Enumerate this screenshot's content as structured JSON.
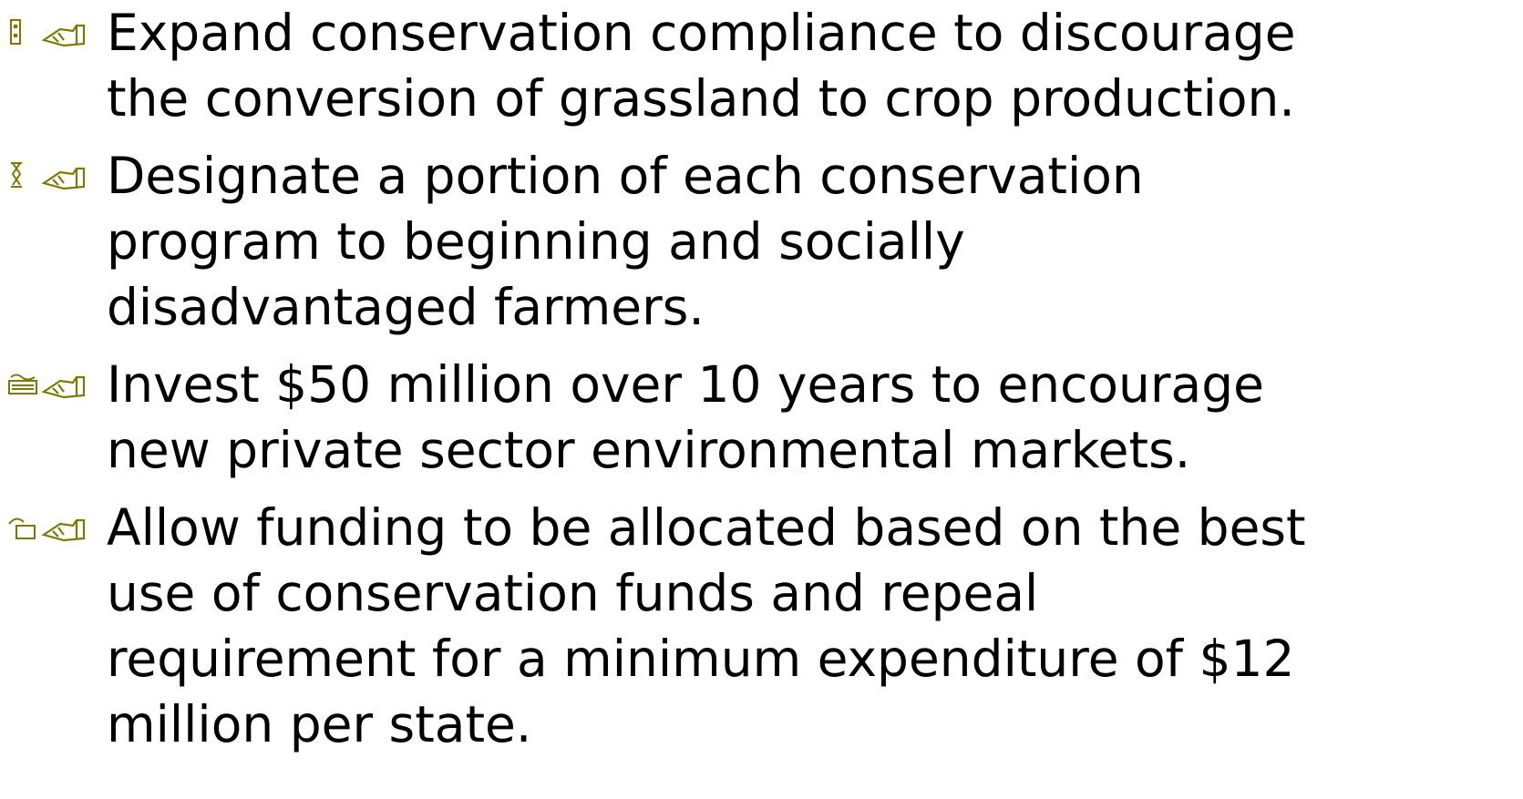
{
  "items": [
    {
      "lines": [
        "Expand conservation compliance to discourage",
        "the conversion of grassland to crop production."
      ]
    },
    {
      "lines": [
        "Designate a portion of each conservation",
        "program to beginning and socially",
        "disadvantaged farmers."
      ]
    },
    {
      "lines": [
        "Invest $50 million over 10 years to encourage",
        "new private sector environmental markets."
      ]
    },
    {
      "lines": [
        "Allow funding to be allocated based on the best",
        "use of conservation funds and repeal",
        "requirement for a minimum expenditure of $12",
        "million per state."
      ]
    }
  ]
}
